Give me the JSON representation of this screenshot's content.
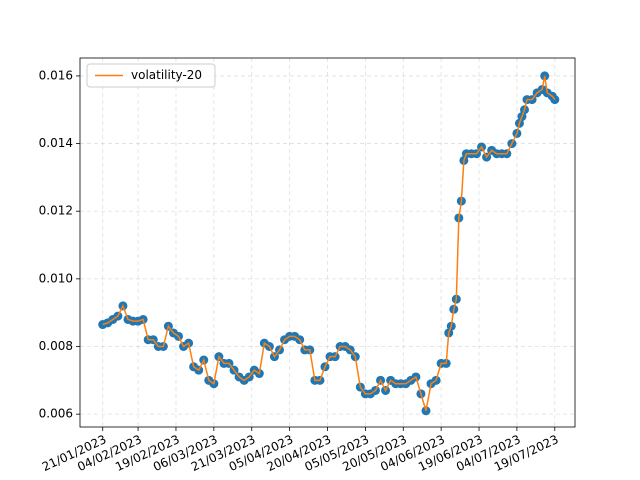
{
  "chart_data": {
    "type": "line",
    "x": [
      "21/01/2023",
      "23/01/2023",
      "25/01/2023",
      "27/01/2023",
      "29/01/2023",
      "31/01/2023",
      "02/02/2023",
      "04/02/2023",
      "06/02/2023",
      "08/02/2023",
      "10/02/2023",
      "12/02/2023",
      "14/02/2023",
      "16/02/2023",
      "18/02/2023",
      "20/02/2023",
      "22/02/2023",
      "24/02/2023",
      "26/02/2023",
      "28/02/2023",
      "02/03/2023",
      "04/03/2023",
      "06/03/2023",
      "08/03/2023",
      "10/03/2023",
      "12/03/2023",
      "14/03/2023",
      "16/03/2023",
      "18/03/2023",
      "20/03/2023",
      "22/03/2023",
      "24/03/2023",
      "26/03/2023",
      "28/03/2023",
      "30/03/2023",
      "01/04/2023",
      "03/04/2023",
      "05/04/2023",
      "07/04/2023",
      "09/04/2023",
      "11/04/2023",
      "13/04/2023",
      "15/04/2023",
      "17/04/2023",
      "19/04/2023",
      "21/04/2023",
      "23/04/2023",
      "25/04/2023",
      "27/04/2023",
      "29/04/2023",
      "01/05/2023",
      "03/05/2023",
      "05/05/2023",
      "07/05/2023",
      "09/05/2023",
      "11/05/2023",
      "13/05/2023",
      "15/05/2023",
      "17/05/2023",
      "19/05/2023",
      "21/05/2023",
      "23/05/2023",
      "25/05/2023",
      "27/05/2023",
      "29/05/2023",
      "31/05/2023",
      "02/06/2023",
      "04/06/2023",
      "06/06/2023",
      "07/06/2023",
      "08/06/2023",
      "09/06/2023",
      "10/06/2023",
      "11/06/2023",
      "12/06/2023",
      "13/06/2023",
      "14/06/2023",
      "16/06/2023",
      "18/06/2023",
      "20/06/2023",
      "22/06/2023",
      "24/06/2023",
      "26/06/2023",
      "28/06/2023",
      "30/06/2023",
      "02/07/2023",
      "04/07/2023",
      "05/07/2023",
      "06/07/2023",
      "07/07/2023",
      "08/07/2023",
      "10/07/2023",
      "12/07/2023",
      "14/07/2023",
      "15/07/2023",
      "16/07/2023",
      "18/07/2023",
      "19/07/2023"
    ],
    "series": [
      {
        "name": "volatility-20",
        "color": "#ff7f0e",
        "marker_color": "#1f77b4",
        "values": [
          0.00865,
          0.0087,
          0.0088,
          0.0089,
          0.0092,
          0.0088,
          0.00875,
          0.00875,
          0.0088,
          0.0082,
          0.0082,
          0.008,
          0.008,
          0.0086,
          0.0084,
          0.0083,
          0.008,
          0.0081,
          0.0074,
          0.0073,
          0.0076,
          0.007,
          0.0069,
          0.0077,
          0.0075,
          0.0075,
          0.0073,
          0.0071,
          0.007,
          0.0071,
          0.0073,
          0.0072,
          0.0081,
          0.008,
          0.0077,
          0.0079,
          0.0082,
          0.0083,
          0.0083,
          0.0082,
          0.0079,
          0.0079,
          0.007,
          0.007,
          0.0074,
          0.0077,
          0.0077,
          0.008,
          0.008,
          0.0079,
          0.0077,
          0.0068,
          0.0066,
          0.0066,
          0.0067,
          0.007,
          0.0067,
          0.007,
          0.0069,
          0.0069,
          0.0069,
          0.007,
          0.0071,
          0.0066,
          0.0061,
          0.0069,
          0.007,
          0.0075,
          0.0075,
          0.0084,
          0.0086,
          0.0091,
          0.0094,
          0.0118,
          0.0123,
          0.0135,
          0.0137,
          0.0137,
          0.0137,
          0.0139,
          0.0136,
          0.0138,
          0.0137,
          0.0137,
          0.0137,
          0.014,
          0.0143,
          0.0146,
          0.0148,
          0.015,
          0.0153,
          0.0153,
          0.0155,
          0.0156,
          0.016,
          0.0155,
          0.0154,
          0.0153
        ]
      }
    ],
    "xlim": [
      "12/01/2023",
      "27/07/2023"
    ],
    "xticks": [
      "21/01/2023",
      "04/02/2023",
      "19/02/2023",
      "06/03/2023",
      "21/03/2023",
      "05/04/2023",
      "20/04/2023",
      "05/05/2023",
      "20/05/2023",
      "04/06/2023",
      "19/06/2023",
      "04/07/2023",
      "19/07/2023"
    ],
    "ylim": [
      0.00562,
      0.01653
    ],
    "yticks": [
      0.006,
      0.008,
      {
        "value": 0.01,
        "label": "0.010"
      },
      0.012,
      0.014,
      0.016
    ],
    "grid": true,
    "legend": "upper left"
  }
}
